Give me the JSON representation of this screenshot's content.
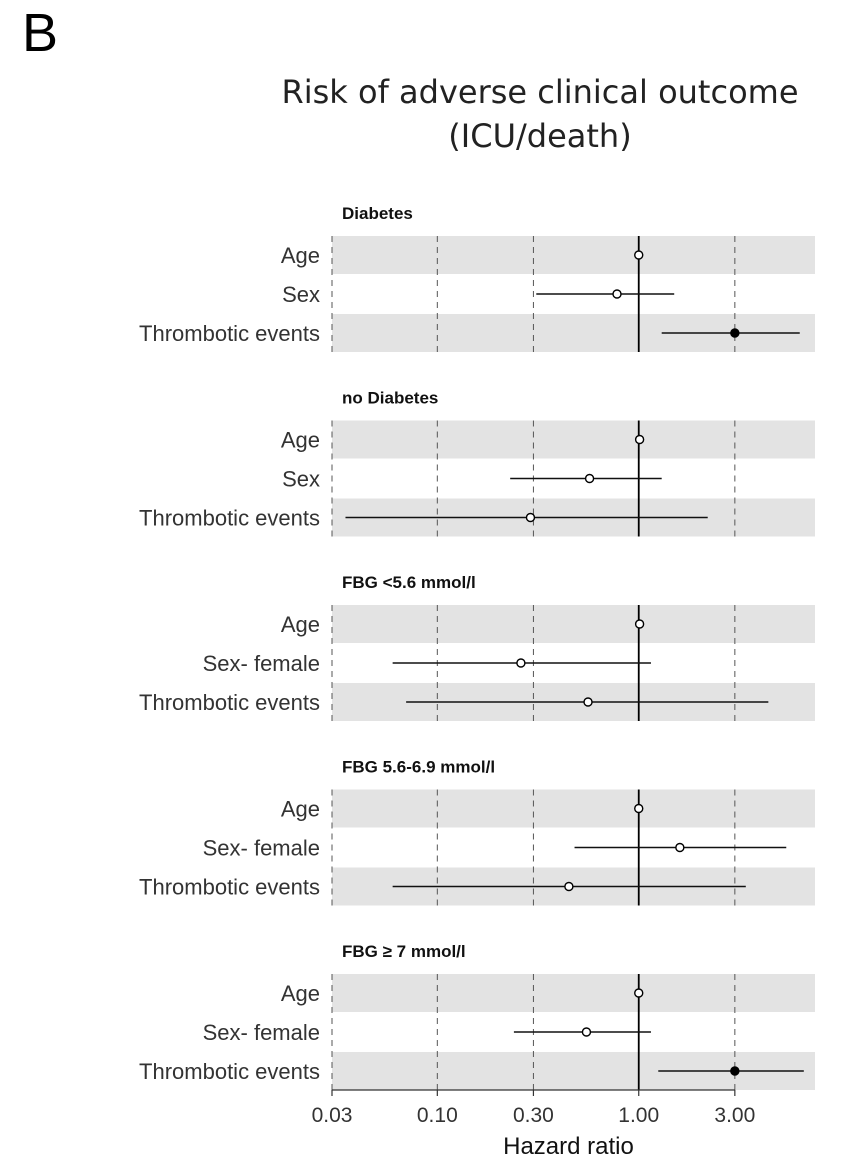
{
  "panel_label": "B",
  "chart_data": {
    "type": "forest",
    "title": "Risk of adverse clinical outcome",
    "subtitle": "(ICU/death)",
    "xlabel": "Hazard ratio",
    "xscale": "log",
    "xlim": [
      0.03,
      7.5
    ],
    "xticks": [
      0.03,
      0.1,
      0.3,
      1.0,
      3.0
    ],
    "xtick_labels": [
      "0.03",
      "0.10",
      "0.30",
      "1.00",
      "3.00"
    ],
    "reference_line": 1.0,
    "panels": [
      {
        "label": "Diabetes",
        "rows": [
          {
            "name": "Age",
            "hr": 1.0,
            "lo": 1.0,
            "hi": 1.0,
            "significant": false
          },
          {
            "name": "Sex",
            "hr": 0.78,
            "lo": 0.31,
            "hi": 1.5,
            "significant": false
          },
          {
            "name": "Thrombotic events",
            "hr": 3.0,
            "lo": 1.3,
            "hi": 6.3,
            "significant": true
          }
        ]
      },
      {
        "label": "no Diabetes",
        "rows": [
          {
            "name": "Age",
            "hr": 1.01,
            "lo": 1.01,
            "hi": 1.01,
            "significant": false
          },
          {
            "name": "Sex",
            "hr": 0.57,
            "lo": 0.23,
            "hi": 1.3,
            "significant": false
          },
          {
            "name": "Thrombotic events",
            "hr": 0.29,
            "lo": 0.035,
            "hi": 2.2,
            "significant": false
          }
        ]
      },
      {
        "label": "FBG <5.6 mmol/l",
        "rows": [
          {
            "name": "Age",
            "hr": 1.01,
            "lo": 1.01,
            "hi": 1.01,
            "significant": false
          },
          {
            "name": "Sex- female",
            "hr": 0.26,
            "lo": 0.06,
            "hi": 1.15,
            "significant": false
          },
          {
            "name": "Thrombotic events",
            "hr": 0.56,
            "lo": 0.07,
            "hi": 4.4,
            "significant": false
          }
        ]
      },
      {
        "label": "FBG 5.6-6.9 mmol/l",
        "rows": [
          {
            "name": "Age",
            "hr": 1.0,
            "lo": 1.0,
            "hi": 1.0,
            "significant": false
          },
          {
            "name": "Sex- female",
            "hr": 1.6,
            "lo": 0.48,
            "hi": 5.4,
            "significant": false
          },
          {
            "name": "Thrombotic events",
            "hr": 0.45,
            "lo": 0.06,
            "hi": 3.4,
            "significant": false
          }
        ]
      },
      {
        "label": "FBG  ≥ 7 mmol/l",
        "rows": [
          {
            "name": "Age",
            "hr": 1.0,
            "lo": 1.0,
            "hi": 1.0,
            "significant": false
          },
          {
            "name": "Sex- female",
            "hr": 0.55,
            "lo": 0.24,
            "hi": 1.15,
            "significant": false
          },
          {
            "name": "Thrombotic events",
            "hr": 3.0,
            "lo": 1.25,
            "hi": 6.6,
            "significant": true
          }
        ]
      }
    ]
  }
}
